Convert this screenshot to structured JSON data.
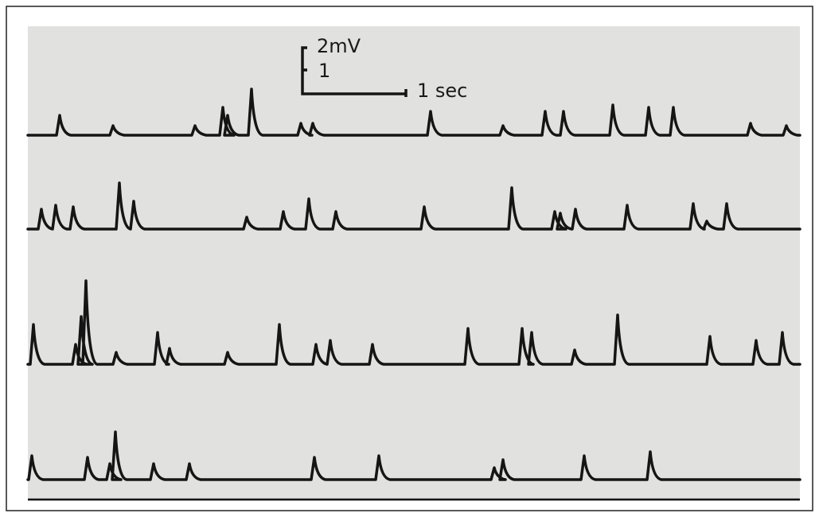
{
  "scale_bar": {
    "voltage_label": "2mV",
    "voltage_minor_label": "1",
    "time_label": "1 sec"
  }
}
